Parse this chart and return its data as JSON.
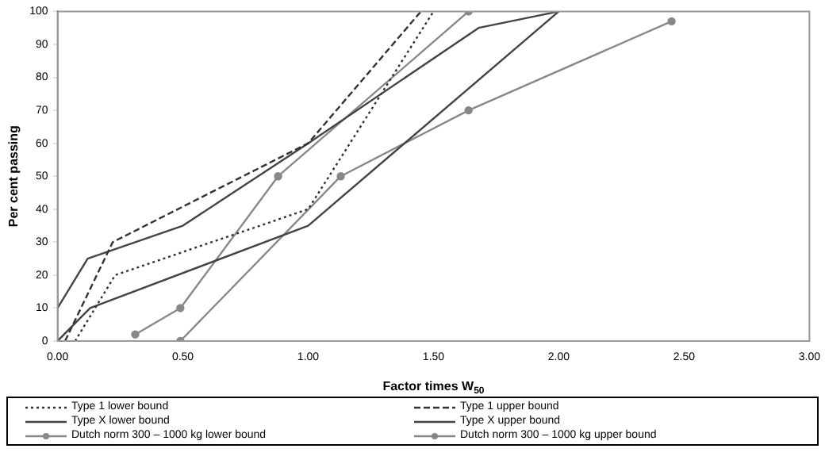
{
  "chart_data": {
    "type": "line",
    "xlabel": "Factor times W$_{50}$",
    "ylabel": "Per cent passing",
    "xlim": [
      0,
      3
    ],
    "xticks": [
      {
        "value": 0,
        "label": "0.00"
      },
      {
        "value": 0.5,
        "label": "0.50"
      },
      {
        "value": 1,
        "label": "1.00"
      },
      {
        "value": 1.5,
        "label": "1.50"
      },
      {
        "value": 2,
        "label": "2.00"
      },
      {
        "value": 2.5,
        "label": "2.50"
      },
      {
        "value": 3,
        "label": "3.00"
      }
    ],
    "ylim": [
      0,
      100
    ],
    "yticks": [
      0,
      10,
      20,
      30,
      40,
      50,
      60,
      70,
      80,
      90,
      100
    ],
    "grid": false,
    "legend": "bottom",
    "series": [
      {
        "name": "Type 1 lower bound",
        "color": "#333333",
        "line_style": "dotted",
        "marker": "none",
        "x": [
          0.07,
          0.23,
          1.0,
          1.5
        ],
        "values": [
          0,
          20,
          40,
          100
        ]
      },
      {
        "name": "Type 1 upper bound",
        "color": "#333333",
        "line_style": "dashed",
        "marker": "none",
        "x": [
          0.03,
          0.22,
          1.0,
          1.45
        ],
        "values": [
          0,
          30,
          60,
          100
        ]
      },
      {
        "name": "Type X lower bound",
        "color": "#444444",
        "line_style": "solid",
        "marker": "none",
        "x": [
          0,
          0.12,
          0.5,
          1.0,
          1.68,
          2.0
        ],
        "values": [
          10,
          25,
          35,
          60,
          95,
          100
        ]
      },
      {
        "name": "Type X upper bound",
        "color": "#444444",
        "line_style": "solid",
        "marker": "none",
        "x": [
          0,
          0.13,
          1.0,
          2.0
        ],
        "values": [
          0,
          10,
          35,
          100
        ]
      },
      {
        "name": "Dutch norm 300 – 1000 kg lower bound",
        "color": "#888888",
        "line_style": "solid",
        "marker": "circle",
        "x": [
          0.31,
          0.49,
          0.88,
          1.64
        ],
        "values": [
          2,
          10,
          50,
          100
        ]
      },
      {
        "name": "Dutch norm 300 – 1000 kg upper bound",
        "color": "#888888",
        "line_style": "solid",
        "marker": "circle",
        "x": [
          0.49,
          1.13,
          1.64,
          2.45
        ],
        "values": [
          0,
          50,
          70,
          97
        ]
      }
    ]
  }
}
